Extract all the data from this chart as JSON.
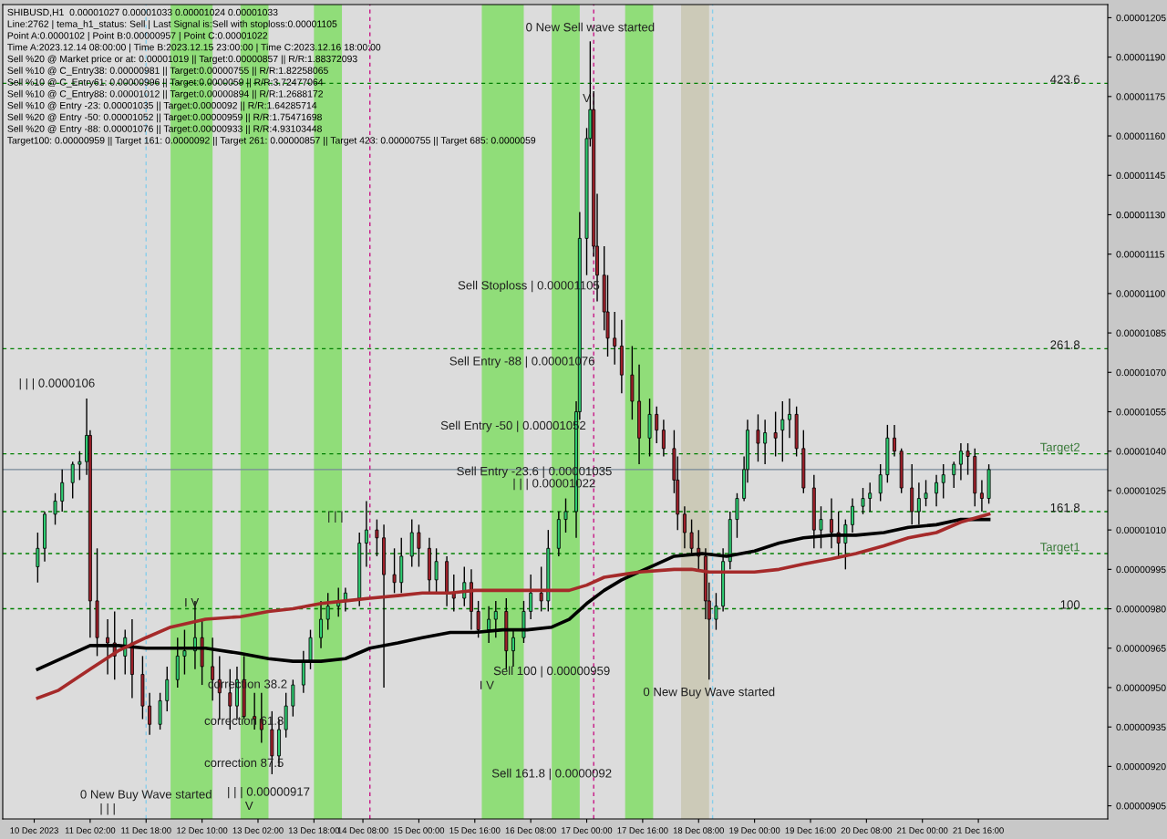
{
  "chart_data": {
    "type": "candlestick",
    "title": "SHIBUSD,H1  0.00001027 0.00001033 0.00001024 0.00001033",
    "x": [
      "2023-12-10T11:00",
      "2023-12-10T13:00",
      "2023-12-10T16:00",
      "2023-12-10T18:00",
      "2023-12-10T21:00",
      "2023-12-10T23:00",
      "2023-12-11T01:00",
      "2023-12-11T02:00",
      "2023-12-11T04:00",
      "2023-12-11T07:00",
      "2023-12-11T09:00",
      "2023-12-11T12:00",
      "2023-12-11T14:00",
      "2023-12-11T17:00",
      "2023-12-11T19:00",
      "2023-12-11T22:00",
      "2023-12-12T00:00",
      "2023-12-12T03:00",
      "2023-12-12T05:00",
      "2023-12-12T08:00",
      "2023-12-12T10:00",
      "2023-12-12T13:00",
      "2023-12-12T15:00",
      "2023-12-12T18:00",
      "2023-12-12T20:00",
      "2023-12-12T22:00",
      "2023-12-13T01:00",
      "2023-12-13T03:00",
      "2023-12-13T06:00",
      "2023-12-13T08:00",
      "2023-12-13T10:00",
      "2023-12-13T12:00",
      "2023-12-13T15:00",
      "2023-12-13T17:00",
      "2023-12-13T20:00",
      "2023-12-13T22:00",
      "2023-12-14T01:00",
      "2023-12-14T03:00",
      "2023-12-14T07:00",
      "2023-12-14T09:00",
      "2023-12-14T12:00",
      "2023-12-14T14:00",
      "2023-12-14T17:00",
      "2023-12-14T19:00",
      "2023-12-14T22:00",
      "2023-12-15T00:00",
      "2023-12-15T03:00",
      "2023-12-15T05:00",
      "2023-12-15T08:00",
      "2023-12-15T10:00",
      "2023-12-15T13:00",
      "2023-12-15T15:00",
      "2023-12-15T17:00",
      "2023-12-15T20:00",
      "2023-12-15T22:00",
      "2023-12-16T01:00",
      "2023-12-16T03:00",
      "2023-12-16T06:00",
      "2023-12-16T08:00",
      "2023-12-16T11:00",
      "2023-12-16T13:00",
      "2023-12-16T16:00",
      "2023-12-16T18:00",
      "2023-12-16T21:00",
      "2023-12-16T22:00",
      "2023-12-17T00:00",
      "2023-12-17T01:00",
      "2023-12-17T02:00",
      "2023-12-17T03:00",
      "2023-12-17T05:00",
      "2023-12-17T06:00",
      "2023-12-17T08:00",
      "2023-12-17T10:00",
      "2023-12-17T13:00",
      "2023-12-17T15:00",
      "2023-12-17T18:00",
      "2023-12-17T20:00",
      "2023-12-17T22:00",
      "2023-12-18T01:00",
      "2023-12-18T02:00",
      "2023-12-18T04:00",
      "2023-12-18T06:00",
      "2023-12-18T08:00",
      "2023-12-18T10:00",
      "2023-12-18T11:00",
      "2023-12-18T13:00",
      "2023-12-18T15:00",
      "2023-12-18T17:00",
      "2023-12-18T19:00",
      "2023-12-18T21:00",
      "2023-12-18T22:00",
      "2023-12-19T01:00",
      "2023-12-19T03:00",
      "2023-12-19T06:00",
      "2023-12-19T08:00",
      "2023-12-19T10:00",
      "2023-12-19T12:00",
      "2023-12-19T14:00",
      "2023-12-19T17:00",
      "2023-12-19T19:00",
      "2023-12-19T22:00",
      "2023-12-20T00:00",
      "2023-12-20T02:00",
      "2023-12-20T04:00",
      "2023-12-20T07:00",
      "2023-12-20T09:00",
      "2023-12-20T12:00",
      "2023-12-20T14:00",
      "2023-12-20T16:00",
      "2023-12-20T18:00",
      "2023-12-20T21:00",
      "2023-12-20T23:00",
      "2023-12-21T01:00",
      "2023-12-21T04:00",
      "2023-12-21T06:00",
      "2023-12-21T09:00",
      "2023-12-21T11:00",
      "2023-12-21T13:00",
      "2023-12-21T15:00",
      "2023-12-21T17:00",
      "2023-12-21T19:00"
    ],
    "ohlc": [
      [
        9.96e-06,
        1.009e-05,
        9.9e-06,
        1.003e-05
      ],
      [
        1.003e-05,
        1.017e-05,
        9.98e-06,
        1.016e-05
      ],
      [
        1.016e-05,
        1.024e-05,
        1.012e-05,
        1.021e-05
      ],
      [
        1.021e-05,
        1.033e-05,
        1.017e-05,
        1.028e-05
      ],
      [
        1.028e-05,
        1.036e-05,
        1.022e-05,
        1.035e-05
      ],
      [
        1.035e-05,
        1.04e-05,
        1.029e-05,
        1.036e-05
      ],
      [
        1.036e-05,
        1.06e-05,
        1.031e-05,
        1.046e-05
      ],
      [
        1.046e-05,
        1.048e-05,
        9.69e-06,
        9.83e-06
      ],
      [
        9.83e-06,
        1.003e-05,
        9.62e-06,
        9.69e-06
      ],
      [
        9.69e-06,
        9.76e-06,
        9.55e-06,
        9.67e-06
      ],
      [
        9.67e-06,
        9.79e-06,
        9.53e-06,
        9.62e-06
      ],
      [
        9.62e-06,
        9.72e-06,
        9.55e-06,
        9.69e-06
      ],
      [
        9.67e-06,
        9.76e-06,
        9.46e-06,
        9.55e-06
      ],
      [
        9.55e-06,
        9.62e-06,
        9.38e-06,
        9.43e-06
      ],
      [
        9.43e-06,
        9.48e-06,
        9.32e-06,
        9.36e-06
      ],
      [
        9.36e-06,
        9.48e-06,
        9.34e-06,
        9.45e-06
      ],
      [
        9.45e-06,
        9.58e-06,
        9.41e-06,
        9.53e-06
      ],
      [
        9.53e-06,
        9.69e-06,
        9.5e-06,
        9.62e-06
      ],
      [
        9.62e-06,
        9.72e-06,
        9.55e-06,
        9.64e-06
      ],
      [
        9.64e-06,
        9.83e-06,
        9.57e-06,
        9.69e-06
      ],
      [
        9.69e-06,
        9.76e-06,
        9.51e-06,
        9.58e-06
      ],
      [
        9.58e-06,
        9.69e-06,
        9.45e-06,
        9.53e-06
      ],
      [
        9.53e-06,
        9.62e-06,
        9.38e-06,
        9.48e-06
      ],
      [
        9.48e-06,
        9.57e-06,
        9.34e-06,
        9.43e-06
      ],
      [
        9.43e-06,
        9.58e-06,
        9.38e-06,
        9.53e-06
      ],
      [
        9.53e-06,
        9.62e-06,
        9.38e-06,
        9.39e-06
      ],
      [
        9.39e-06,
        9.48e-06,
        9.34e-06,
        9.38e-06
      ],
      [
        9.38e-06,
        9.48e-06,
        9.29e-06,
        9.34e-06
      ],
      [
        9.34e-06,
        9.41e-06,
        9.17e-06,
        9.24e-06
      ],
      [
        9.24e-06,
        9.38e-06,
        9.2e-06,
        9.34e-06
      ],
      [
        9.34e-06,
        9.48e-06,
        9.31e-06,
        9.43e-06
      ],
      [
        9.43e-06,
        9.53e-06,
        9.39e-06,
        9.51e-06
      ],
      [
        9.51e-06,
        9.64e-06,
        9.48e-06,
        9.6e-06
      ],
      [
        9.6e-06,
        9.72e-06,
        9.57e-06,
        9.69e-06
      ],
      [
        9.69e-06,
        9.83e-06,
        9.65e-06,
        9.76e-06
      ],
      [
        9.76e-06,
        9.86e-06,
        9.72e-06,
        9.81e-06
      ],
      [
        9.81e-06,
        9.88e-06,
        9.77e-06,
        9.83e-06
      ],
      [
        9.83e-06,
        9.88e-06,
        9.79e-06,
        9.86e-06
      ],
      [
        9.84e-06,
        1.009e-05,
        9.81e-06,
        1.005e-05
      ],
      [
        1.005e-05,
        1.021e-05,
        9.96e-06,
        1.01e-05
      ],
      [
        1.01e-05,
        1.014e-05,
        1e-05,
        1.007e-05
      ],
      [
        1.007e-05,
        1.012e-05,
        9.5e-06,
        9.93e-06
      ],
      [
        9.93e-06,
        1.003e-05,
        9.86e-06,
        9.9e-06
      ],
      [
        9.9e-06,
        1.007e-05,
        9.86e-06,
        1e-05
      ],
      [
        1e-05,
        1.014e-05,
        9.96e-06,
        1.009e-05
      ],
      [
        1.009e-05,
        1.012e-05,
        9.96e-06,
        1.003e-05
      ],
      [
        1.003e-05,
        1.007e-05,
        9.86e-06,
        9.91e-06
      ],
      [
        9.91e-06,
        1.003e-05,
        9.86e-06,
        9.98e-06
      ],
      [
        9.98e-06,
        1e-05,
        9.81e-06,
        9.86e-06
      ],
      [
        9.86e-06,
        9.93e-06,
        9.79e-06,
        9.84e-06
      ],
      [
        9.84e-06,
        9.96e-06,
        9.81e-06,
        9.9e-06
      ],
      [
        9.9e-06,
        9.95e-06,
        9.72e-06,
        9.79e-06
      ],
      [
        9.79e-06,
        9.83e-06,
        9.69e-06,
        9.72e-06
      ],
      [
        9.72e-06,
        9.81e-06,
        9.67e-06,
        9.76e-06
      ],
      [
        9.76e-06,
        9.83e-06,
        9.69e-06,
        9.79e-06
      ],
      [
        9.79e-06,
        9.84e-06,
        9.57e-06,
        9.64e-06
      ],
      [
        9.64e-06,
        9.72e-06,
        9.58e-06,
        9.69e-06
      ],
      [
        9.69e-06,
        9.83e-06,
        9.67e-06,
        9.79e-06
      ],
      [
        9.79e-06,
        9.93e-06,
        9.76e-06,
        9.86e-06
      ],
      [
        9.86e-06,
        9.96e-06,
        9.79e-06,
        9.83e-06
      ],
      [
        9.83e-06,
        1.01e-05,
        9.79e-06,
        1.003e-05
      ],
      [
        1.003e-05,
        1.017e-05,
        1e-05,
        1.014e-05
      ],
      [
        1.014e-05,
        1.022e-05,
        1.009e-05,
        1.017e-05
      ],
      [
        1.017e-05,
        1.059e-05,
        1.007e-05,
        1.055e-05
      ],
      [
        1.055e-05,
        1.131e-05,
        1.052e-05,
        1.121e-05
      ],
      [
        1.121e-05,
        1.163e-05,
        1.107e-05,
        1.159e-05
      ],
      [
        1.159e-05,
        1.196e-05,
        1.156e-05,
        1.17e-05
      ],
      [
        1.17e-05,
        1.177e-05,
        1.114e-05,
        1.118e-05
      ],
      [
        1.118e-05,
        1.138e-05,
        1.097e-05,
        1.107e-05
      ],
      [
        1.107e-05,
        1.118e-05,
        1.086e-05,
        1.093e-05
      ],
      [
        1.093e-05,
        1.107e-05,
        1.076e-05,
        1.083e-05
      ],
      [
        1.083e-05,
        1.093e-05,
        1.073e-05,
        1.08e-05
      ],
      [
        1.08e-05,
        1.09e-05,
        1.062e-05,
        1.069e-05
      ],
      [
        1.069e-05,
        1.08e-05,
        1.052e-05,
        1.059e-05
      ],
      [
        1.059e-05,
        1.073e-05,
        1.035e-05,
        1.045e-05
      ],
      [
        1.045e-05,
        1.06e-05,
        1.038e-05,
        1.054e-05
      ],
      [
        1.054e-05,
        1.057e-05,
        1.043e-05,
        1.048e-05
      ],
      [
        1.048e-05,
        1.052e-05,
        1.038e-05,
        1.041e-05
      ],
      [
        1.041e-05,
        1.048e-05,
        1.024e-05,
        1.029e-05
      ],
      [
        1.029e-05,
        1.038e-05,
        1.01e-05,
        1.016e-05
      ],
      [
        1.016e-05,
        1.019e-05,
        1.003e-05,
        1.009e-05
      ],
      [
        1.009e-05,
        1.014e-05,
        1e-05,
        1.003e-05
      ],
      [
        1.003e-05,
        1.01e-05,
        9.95e-06,
        1e-05
      ],
      [
        1e-05,
        1.003e-05,
        9.76e-06,
        9.83e-06
      ],
      [
        9.83e-06,
        9.9e-06,
        9.53e-06,
        9.76e-06
      ],
      [
        9.76e-06,
        9.86e-06,
        9.72e-06,
        9.81e-06
      ],
      [
        9.81e-06,
        1.003e-05,
        9.79e-06,
        9.98e-06
      ],
      [
        9.98e-06,
        1.017e-05,
        9.95e-06,
        1.014e-05
      ],
      [
        1.014e-05,
        1.024e-05,
        1.007e-05,
        1.022e-05
      ],
      [
        1.022e-05,
        1.038e-05,
        1.021e-05,
        1.033e-05
      ],
      [
        1.033e-05,
        1.052e-05,
        1.028e-05,
        1.048e-05
      ],
      [
        1.048e-05,
        1.054e-05,
        1.036e-05,
        1.043e-05
      ],
      [
        1.043e-05,
        1.052e-05,
        1.035e-05,
        1.047e-05
      ],
      [
        1.047e-05,
        1.055e-05,
        1.038e-05,
        1.045e-05
      ],
      [
        1.048e-05,
        1.059e-05,
        1.036e-05,
        1.052e-05
      ],
      [
        1.052e-05,
        1.06e-05,
        1.045e-05,
        1.054e-05
      ],
      [
        1.054e-05,
        1.057e-05,
        1.038e-05,
        1.041e-05
      ],
      [
        1.041e-05,
        1.048e-05,
        1.024e-05,
        1.026e-05
      ],
      [
        1.026e-05,
        1.031e-05,
        1.003e-05,
        1.01e-05
      ],
      [
        1.01e-05,
        1.019e-05,
        1.003e-05,
        1.014e-05
      ],
      [
        1.014e-05,
        1.022e-05,
        1.003e-05,
        1.009e-05
      ],
      [
        1.009e-05,
        1.017e-05,
        1e-05,
        1.005e-05
      ],
      [
        1.005e-05,
        1.014e-05,
        9.95e-06,
        1.012e-05
      ],
      [
        1.012e-05,
        1.022e-05,
        1.009e-05,
        1.019e-05
      ],
      [
        1.019e-05,
        1.026e-05,
        1.016e-05,
        1.022e-05
      ],
      [
        1.022e-05,
        1.028e-05,
        1.017e-05,
        1.024e-05
      ],
      [
        1.024e-05,
        1.035e-05,
        1.021e-05,
        1.031e-05
      ],
      [
        1.031e-05,
        1.05e-05,
        1.028e-05,
        1.045e-05
      ],
      [
        1.045e-05,
        1.05e-05,
        1.038e-05,
        1.04e-05
      ],
      [
        1.04e-05,
        1.041e-05,
        1.024e-05,
        1.026e-05
      ],
      [
        1.026e-05,
        1.035e-05,
        1.012e-05,
        1.017e-05
      ],
      [
        1.017e-05,
        1.028e-05,
        1.012e-05,
        1.022e-05
      ],
      [
        1.022e-05,
        1.029e-05,
        1.019e-05,
        1.024e-05
      ],
      [
        1.024e-05,
        1.031e-05,
        1.019e-05,
        1.028e-05
      ],
      [
        1.028e-05,
        1.035e-05,
        1.022e-05,
        1.031e-05
      ],
      [
        1.031e-05,
        1.036e-05,
        1.026e-05,
        1.035e-05
      ],
      [
        1.035e-05,
        1.043e-05,
        1.029e-05,
        1.04e-05
      ],
      [
        1.04e-05,
        1.043e-05,
        1.031e-05,
        1.038e-05
      ],
      [
        1.038e-05,
        1.041e-05,
        1.019e-05,
        1.024e-05
      ],
      [
        1.024e-05,
        1.029e-05,
        1.017e-05,
        1.022e-05
      ],
      [
        1.022e-05,
        1.035e-05,
        1.02e-05,
        1.033e-05
      ]
    ],
    "series": [
      {
        "type": "line",
        "color": "#000000",
        "x": [
          "2023-12-10T11:00",
          "2023-12-11T02:00",
          "2023-12-11T10:00",
          "2023-12-11T18:00",
          "2023-12-12T01:00",
          "2023-12-12T11:00",
          "2023-12-12T21:00",
          "2023-12-13T05:00",
          "2023-12-13T12:00",
          "2023-12-13T20:00",
          "2023-12-14T03:00",
          "2023-12-14T10:00",
          "2023-12-14T18:00",
          "2023-12-15T01:00",
          "2023-12-15T09:00",
          "2023-12-15T16:00",
          "2023-12-16T00:00",
          "2023-12-16T07:00",
          "2023-12-16T14:00",
          "2023-12-16T19:00",
          "2023-12-17T00:00",
          "2023-12-17T05:00",
          "2023-12-17T10:00",
          "2023-12-17T15:00",
          "2023-12-17T20:00",
          "2023-12-18T01:00",
          "2023-12-18T09:00",
          "2023-12-18T16:00",
          "2023-12-19T00:00",
          "2023-12-19T07:00",
          "2023-12-19T14:00",
          "2023-12-19T22:00",
          "2023-12-20T05:00",
          "2023-12-20T13:00",
          "2023-12-20T20:00",
          "2023-12-21T04:00",
          "2023-12-21T11:00",
          "2023-12-21T19:00"
        ],
        "values": [
          9.57e-06,
          9.66e-06,
          9.66e-06,
          9.65e-06,
          9.65e-06,
          9.65e-06,
          9.63e-06,
          9.61e-06,
          9.6e-06,
          9.6e-06,
          9.61e-06,
          9.65e-06,
          9.67e-06,
          9.69e-06,
          9.71e-06,
          9.71e-06,
          9.72e-06,
          9.72e-06,
          9.73e-06,
          9.76e-06,
          9.82e-06,
          9.87e-06,
          9.91e-06,
          9.94e-06,
          9.97e-06,
          1e-05,
          1.001e-05,
          1e-05,
          1.002e-05,
          1.005e-05,
          1.007e-05,
          1.008e-05,
          1.008e-05,
          1.009e-05,
          1.011e-05,
          1.012e-05,
          1.014e-05,
          1.014e-05
        ]
      },
      {
        "type": "line",
        "color": "#a52a2a",
        "x": [
          "2023-12-10T11:00",
          "2023-12-10T17:00",
          "2023-12-11T02:00",
          "2023-12-11T10:00",
          "2023-12-11T18:00",
          "2023-12-12T01:00",
          "2023-12-12T11:00",
          "2023-12-12T21:00",
          "2023-12-13T05:00",
          "2023-12-13T12:00",
          "2023-12-13T20:00",
          "2023-12-14T03:00",
          "2023-12-14T10:00",
          "2023-12-14T18:00",
          "2023-12-15T01:00",
          "2023-12-15T09:00",
          "2023-12-15T16:00",
          "2023-12-16T00:00",
          "2023-12-16T07:00",
          "2023-12-16T14:00",
          "2023-12-16T19:00",
          "2023-12-17T00:00",
          "2023-12-17T05:00",
          "2023-12-17T10:00",
          "2023-12-17T15:00",
          "2023-12-18T01:00",
          "2023-12-18T06:00",
          "2023-12-18T11:00",
          "2023-12-18T16:00",
          "2023-12-19T00:00",
          "2023-12-19T07:00",
          "2023-12-19T14:00",
          "2023-12-19T22:00",
          "2023-12-20T05:00",
          "2023-12-20T13:00",
          "2023-12-20T20:00",
          "2023-12-21T04:00",
          "2023-12-21T11:00",
          "2023-12-21T19:00"
        ],
        "values": [
          9.46e-06,
          9.49e-06,
          9.57e-06,
          9.64e-06,
          9.69e-06,
          9.73e-06,
          9.76e-06,
          9.77e-06,
          9.79e-06,
          9.8e-06,
          9.82e-06,
          9.83e-06,
          9.84e-06,
          9.85e-06,
          9.86e-06,
          9.86e-06,
          9.87e-06,
          9.87e-06,
          9.87e-06,
          9.87e-06,
          9.87e-06,
          9.89e-06,
          9.92e-06,
          9.93e-06,
          9.94e-06,
          9.95e-06,
          9.95e-06,
          9.94e-06,
          9.94e-06,
          9.94e-06,
          9.95e-06,
          9.97e-06,
          9.99e-06,
          1.001e-05,
          1.004e-05,
          1.007e-05,
          1.009e-05,
          1.013e-05,
          1.016e-05
        ]
      }
    ],
    "xlim": [
      "2023-12-10T01:00",
      "2023-12-23T05:00"
    ],
    "xticks": [
      {
        "value": "2023-12-10T10:00",
        "label": "10 Dec 2023"
      },
      {
        "value": "2023-12-11T02:00",
        "label": "11 Dec 02:00"
      },
      {
        "value": "2023-12-11T18:00",
        "label": "11 Dec 18:00"
      },
      {
        "value": "2023-12-12T10:00",
        "label": "12 Dec 10:00"
      },
      {
        "value": "2023-12-13T02:00",
        "label": "13 Dec 02:00"
      },
      {
        "value": "2023-12-13T18:00",
        "label": "13 Dec 18:00"
      },
      {
        "value": "2023-12-14T08:00",
        "label": "14 Dec 08:00"
      },
      {
        "value": "2023-12-15T00:00",
        "label": "15 Dec 00:00"
      },
      {
        "value": "2023-12-15T16:00",
        "label": "15 Dec 16:00"
      },
      {
        "value": "2023-12-16T08:00",
        "label": "16 Dec 08:00"
      },
      {
        "value": "2023-12-17T00:00",
        "label": "17 Dec 00:00"
      },
      {
        "value": "2023-12-17T16:00",
        "label": "17 Dec 16:00"
      },
      {
        "value": "2023-12-18T08:00",
        "label": "18 Dec 08:00"
      },
      {
        "value": "2023-12-19T00:00",
        "label": "19 Dec 00:00"
      },
      {
        "value": "2023-12-19T16:00",
        "label": "19 Dec 16:00"
      },
      {
        "value": "2023-12-20T08:00",
        "label": "20 Dec 08:00"
      },
      {
        "value": "2023-12-21T00:00",
        "label": "21 Dec 00:00"
      },
      {
        "value": "2023-12-21T16:00",
        "label": "21 Dec 16:00"
      }
    ],
    "ylim": [
      9e-06,
      1.21e-05
    ],
    "yticks": [
      {
        "value": 9.05e-06,
        "label": "0.00000905"
      },
      {
        "value": 9.2e-06,
        "label": "0.00000920"
      },
      {
        "value": 9.35e-06,
        "label": "0.00000935"
      },
      {
        "value": 9.5e-06,
        "label": "0.00000950"
      },
      {
        "value": 9.65e-06,
        "label": "0.00000965"
      },
      {
        "value": 9.8e-06,
        "label": "0.00000980"
      },
      {
        "value": 9.95e-06,
        "label": "0.00000995"
      },
      {
        "value": 1.01e-05,
        "label": "0.00001010"
      },
      {
        "value": 1.025e-05,
        "label": "0.00001025"
      },
      {
        "value": 1.04e-05,
        "label": "0.00001040"
      },
      {
        "value": 1.055e-05,
        "label": "0.00001055"
      },
      {
        "value": 1.07e-05,
        "label": "0.00001070"
      },
      {
        "value": 1.085e-05,
        "label": "0.00001085"
      },
      {
        "value": 1.1e-05,
        "label": "0.00001100"
      },
      {
        "value": 1.115e-05,
        "label": "0.00001115"
      },
      {
        "value": 1.13e-05,
        "label": "0.00001130"
      },
      {
        "value": 1.145e-05,
        "label": "0.00001145"
      },
      {
        "value": 1.16e-05,
        "label": "0.00001160"
      },
      {
        "value": 1.175e-05,
        "label": "0.00001175"
      },
      {
        "value": 1.19e-05,
        "label": "0.00001190"
      },
      {
        "value": 1.205e-05,
        "label": "0.00001205"
      }
    ],
    "grid": false,
    "legend": false,
    "ref_lines": [
      {
        "axis": "y",
        "value": 1.18e-05,
        "label": null,
        "color": "#008000",
        "line_style": "dashed"
      },
      {
        "axis": "y",
        "value": 1.079e-05,
        "label": null,
        "color": "#008000",
        "line_style": "dashed"
      },
      {
        "axis": "y",
        "value": 1.039e-05,
        "label": "Target2",
        "color": "#008000",
        "line_style": "dashed"
      },
      {
        "axis": "y",
        "value": 1.017e-05,
        "label": null,
        "color": "#008000",
        "line_style": "dashed"
      },
      {
        "axis": "y",
        "value": 1.001e-05,
        "label": "Target1",
        "color": "#008000",
        "line_style": "dashed"
      },
      {
        "axis": "y",
        "value": 9.8e-06,
        "label": null,
        "color": "#008000",
        "line_style": "dashed"
      },
      {
        "axis": "y",
        "value": 1.033e-05,
        "label": null,
        "color": "#778899",
        "line_style": "solid"
      },
      {
        "axis": "x",
        "value": "2023-12-11T18:00",
        "label": null,
        "color": "#87ceeb",
        "line_style": "dashed"
      },
      {
        "axis": "x",
        "value": "2023-12-14T10:00",
        "label": null,
        "color": "#c71585",
        "line_style": "dashed"
      },
      {
        "axis": "x",
        "value": "2023-12-17T02:00",
        "label": null,
        "color": "#c71585",
        "line_style": "dashed"
      },
      {
        "axis": "x",
        "value": "2023-12-18T12:00",
        "label": null,
        "color": "#87ceeb",
        "line_style": "dashed"
      }
    ],
    "bands": [
      {
        "axis": "x",
        "from": "2023-12-12T01:00",
        "to": "2023-12-12T13:00",
        "label": null,
        "color": "#33dd00"
      },
      {
        "axis": "x",
        "from": "2023-12-12T21:00",
        "to": "2023-12-13T05:00",
        "label": null,
        "color": "#33dd00"
      },
      {
        "axis": "x",
        "from": "2023-12-13T18:00",
        "to": "2023-12-14T02:00",
        "label": null,
        "color": "#33dd00"
      },
      {
        "axis": "x",
        "from": "2023-12-15T18:00",
        "to": "2023-12-16T06:00",
        "label": null,
        "color": "#33dd00"
      },
      {
        "axis": "x",
        "from": "2023-12-16T14:00",
        "to": "2023-12-16T22:00",
        "label": null,
        "color": "#33dd00"
      },
      {
        "axis": "x",
        "from": "2023-12-17T11:00",
        "to": "2023-12-17T19:00",
        "label": null,
        "color": "#33dd00"
      },
      {
        "axis": "x",
        "from": "2023-12-18T03:00",
        "to": "2023-12-18T11:00",
        "label": null,
        "color": "#b8b48c"
      }
    ],
    "annotations": [
      "Line:2762 | tema_h1_status: Sell | Last Signal is:Sell with stoploss:0.00001105",
      "Point A:0.0000102 | Point B:0.00000957 | Point C:0.00001022",
      "Time A:2023.12.14 08:00:00 | Time B:2023.12.15 23:00:00 | Time C:2023.12.16 18:00:00",
      "Sell %20 @ Market price or at: 0.00001019 || Target:0.00000857 || R/R:1.88372093",
      "Sell %10 @ C_Entry38: 0.00000981 || Target:0.00000755 || R/R:1.82258065",
      "Sell %10 @ C_Entry61: 0.00000996 || Target:0.0000059 || R/R:3.72477064",
      "Sell %10 @ C_Entry88: 0.00001012 || Target:0.00000894 || R/R:1.2688172",
      "Sell %10 @ Entry -23: 0.00001035 || Target:0.0000092 || R/R:1.64285714",
      "Sell %20 @ Entry -50: 0.00001052 || Target:0.00000959 || R/R:1.75471698",
      "Sell %20 @ Entry -88: 0.00001076 || Target:0.00000933 || R/R:4.93103448",
      "Target100: 0.00000959 || Target 161: 0.0000092 || Target 261: 0.00000857 || Target 423: 0.00000755 || Target 685: 0.0000059",
      "| | | 0.0000106",
      "| | | 0.00001022",
      "Sell Stoploss | 0.00001105",
      "Sell Entry -88 | 0.00001076",
      "Sell Entry -50 | 0.00001052",
      "I V",
      "V",
      "| | |",
      "| | |",
      "423.6",
      "261.8",
      "161.8",
      "100",
      {
        "text": "0 New Sell wave started",
        "x": "2023-12-17T01:00",
        "y": 1.201e-05
      },
      {
        "text": "| | | 0.00000917",
        "x": "2023-12-13T05:00",
        "y": 9.1e-06
      },
      {
        "text": "Sell Entry -23.6 | 0.00001035",
        "x": "2023-12-16T09:00",
        "y": 1.032e-05
      },
      {
        "text": "Sell 100 | 0.00000959",
        "x": "2023-12-16T14:00",
        "y": 9.56e-06
      },
      {
        "text": "Sell 161.8 | 0.0000092",
        "x": "2023-12-16T14:00",
        "y": 9.17e-06
      },
      {
        "text": "0 New Buy Wave started",
        "x": "2023-12-11T18:00",
        "y": 9.09e-06
      },
      {
        "text": "0 New Buy Wave started",
        "x": "2023-12-18T11:00",
        "y": 9.48e-06
      },
      {
        "text": "correction 38.2",
        "x": "2023-12-12T23:00",
        "y": 9.51e-06
      },
      {
        "text": "correction 61.8",
        "x": "2023-12-12T22:00",
        "y": 9.37e-06
      },
      {
        "text": "correction 87.5",
        "x": "2023-12-12T22:00",
        "y": 9.21e-06
      },
      {
        "text": "I V",
        "x": "2023-12-12T07:00",
        "y": 9.82e-06
      },
      {
        "text": "V",
        "x": "2023-12-17T00:00",
        "y": 1.174e-05
      }
    ]
  }
}
